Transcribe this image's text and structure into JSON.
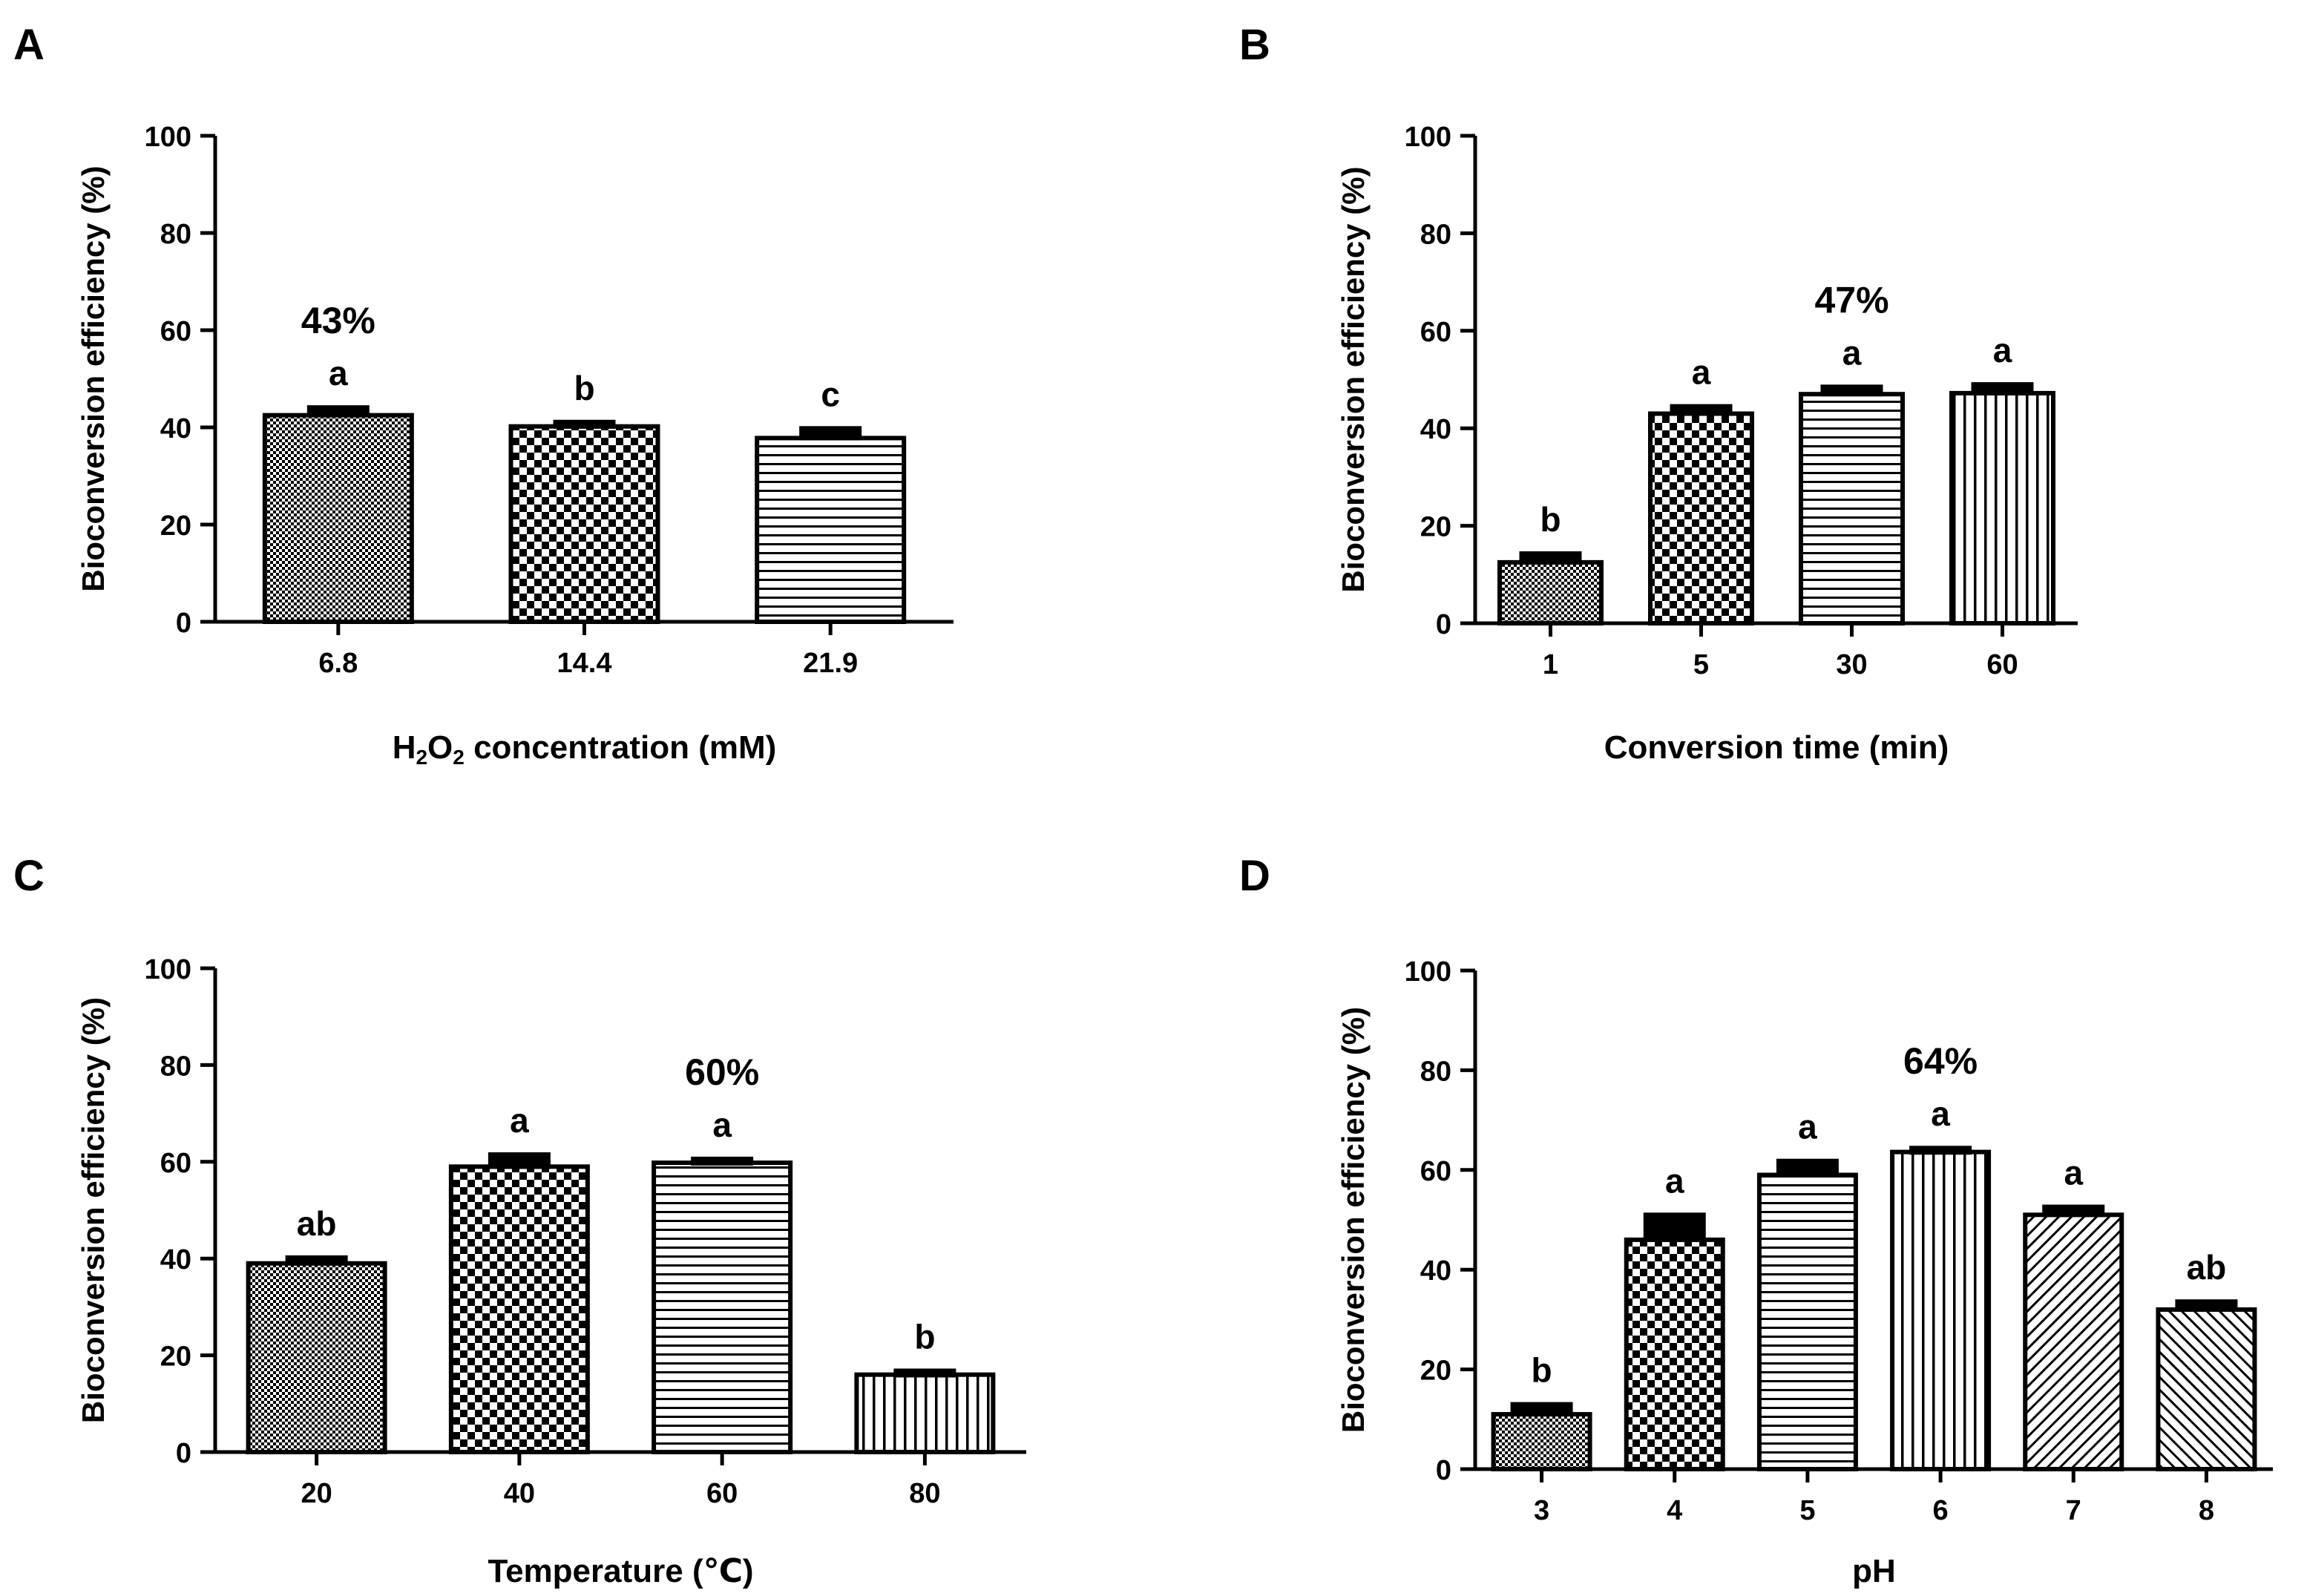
{
  "chart_data": [
    {
      "panel_label": "A",
      "type": "bar",
      "title": "",
      "xlabel": "H2O2 concentration (mM)",
      "ylabel": "Bioconversion efficiency (%)",
      "ylim": [
        0,
        100
      ],
      "yticks": [
        "0",
        "20",
        "40",
        "60",
        "80",
        "100"
      ],
      "categories": [
        "6.8",
        "14.4",
        "21.9"
      ],
      "values": [
        42.5,
        40.2,
        37.8
      ],
      "errors": [
        1.6,
        0.9,
        2.0
      ],
      "letters": [
        "a",
        "b",
        "c"
      ],
      "patterns": [
        "fine-check",
        "check",
        "hstripe"
      ],
      "highlight": {
        "text": "43%",
        "index": 0,
        "value": 43
      }
    },
    {
      "panel_label": "B",
      "type": "bar",
      "title": "",
      "xlabel": "Conversion time (min)",
      "ylabel": "Bioconversion efficiency (%)",
      "ylim": [
        0,
        100
      ],
      "yticks": [
        "0",
        "20",
        "40",
        "60",
        "80",
        "100"
      ],
      "categories": [
        "1",
        "5",
        "30",
        "60"
      ],
      "values": [
        12.5,
        43.0,
        47.0,
        47.2
      ],
      "errors": [
        1.8,
        1.5,
        1.5,
        1.8
      ],
      "letters": [
        "b",
        "a",
        "a",
        "a"
      ],
      "patterns": [
        "fine-check",
        "check",
        "hstripe",
        "vstripe"
      ],
      "highlight": {
        "text": "47%",
        "index": 2,
        "value": 47
      }
    },
    {
      "panel_label": "C",
      "type": "bar",
      "title": "",
      "xlabel": "Temperature (℃)",
      "ylabel": "Bioconversion efficiency (%)",
      "ylim": [
        0,
        100
      ],
      "yticks": [
        "0",
        "20",
        "40",
        "60",
        "80",
        "100"
      ],
      "categories": [
        "20",
        "40",
        "60",
        "80"
      ],
      "values": [
        39.0,
        59.0,
        59.8,
        16.0
      ],
      "errors": [
        1.2,
        2.5,
        0.8,
        0.8
      ],
      "letters": [
        "ab",
        "a",
        "a",
        "b"
      ],
      "patterns": [
        "fine-check",
        "check",
        "hstripe",
        "vstripe"
      ],
      "highlight": {
        "text": "60%",
        "index": 2,
        "value": 60
      }
    },
    {
      "panel_label": "D",
      "type": "bar",
      "title": "",
      "xlabel": "pH",
      "ylabel": "Bioconversion efficiency (%)",
      "ylim": [
        0,
        100
      ],
      "yticks": [
        "0",
        "20",
        "40",
        "60",
        "80",
        "100"
      ],
      "categories": [
        "3",
        "4",
        "5",
        "6",
        "7",
        "8"
      ],
      "values": [
        11.0,
        46.0,
        59.0,
        63.6,
        51.0,
        32.0
      ],
      "errors": [
        2.0,
        5.0,
        2.8,
        0.8,
        1.6,
        1.6
      ],
      "letters": [
        "b",
        "a",
        "a",
        "a",
        "a",
        "ab"
      ],
      "patterns": [
        "fine-check",
        "check",
        "hstripe",
        "vstripe",
        "diag",
        "diag2"
      ],
      "highlight": {
        "text": "64%",
        "index": 3,
        "value": 64
      }
    }
  ]
}
